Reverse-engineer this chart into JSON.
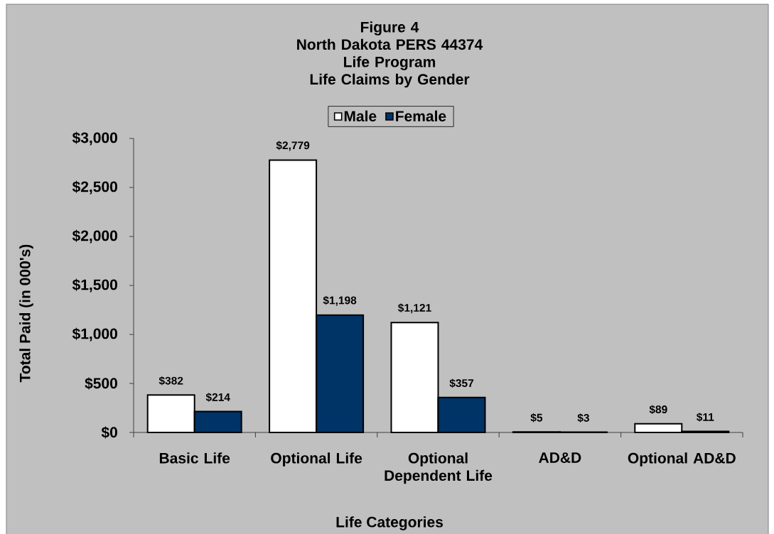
{
  "chart_data": {
    "type": "bar",
    "title": "Figure 4\nNorth Dakota PERS 44374\nLife Program\nLife Claims by Gender",
    "xlabel": "Life Categories",
    "ylabel": "Total Paid (in 000's)",
    "categories": [
      "Basic Life",
      "Optional Life",
      "Optional Dependent Life",
      "AD&D",
      "Optional AD&D"
    ],
    "series": [
      {
        "name": "Male",
        "color": "#ffffff",
        "values": [
          382,
          2779,
          1121,
          5,
          89
        ],
        "value_labels": [
          "$382",
          "$2,779",
          "$1,121",
          "$5",
          "$89"
        ]
      },
      {
        "name": "Female",
        "color": "#003366",
        "values": [
          214,
          1198,
          357,
          3,
          11
        ],
        "value_labels": [
          "$214",
          "$1,198",
          "$357",
          "$3",
          "$11"
        ]
      }
    ],
    "ylim": [
      0,
      3000
    ],
    "yticks": [
      {
        "value": 0,
        "label": "$0"
      },
      {
        "value": 500,
        "label": "$500"
      },
      {
        "value": 1000,
        "label": "$1,000"
      },
      {
        "value": 1500,
        "label": "$1,500"
      },
      {
        "value": 2000,
        "label": "$2,000"
      },
      {
        "value": 2500,
        "label": "$2,500"
      },
      {
        "value": 3000,
        "label": "$3,000"
      }
    ],
    "legend": "top"
  }
}
